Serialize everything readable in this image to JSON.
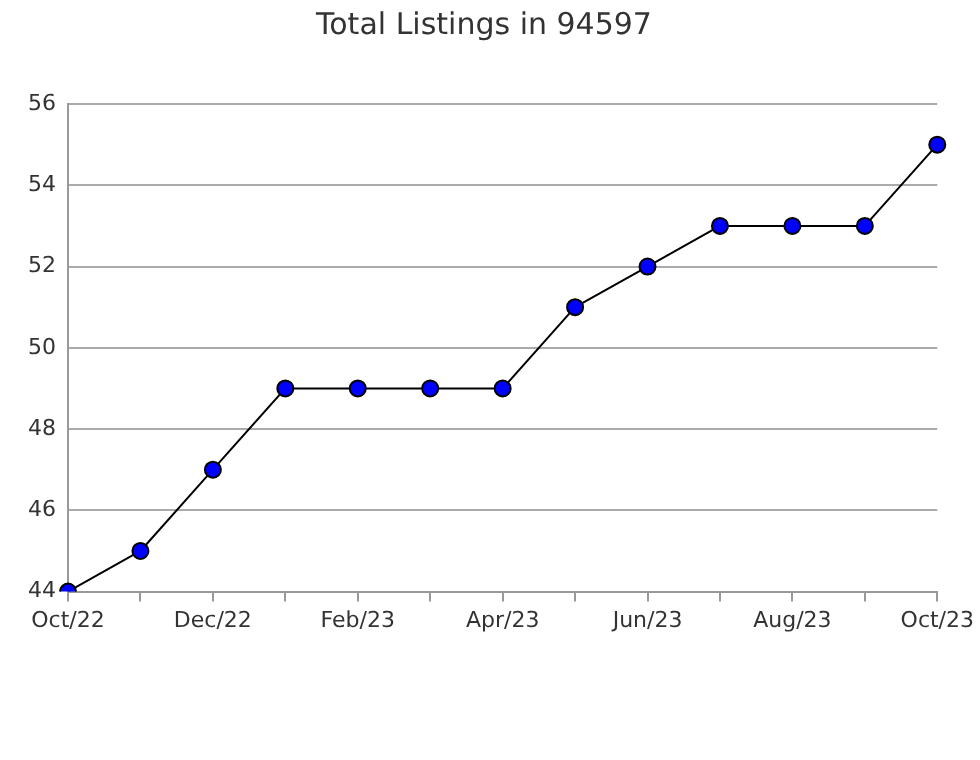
{
  "chart_data": {
    "type": "line",
    "title": "Total Listings in 94597",
    "categories": [
      "Oct/22",
      null,
      "Dec/22",
      null,
      "Feb/23",
      null,
      "Apr/23",
      null,
      "Jun/23",
      null,
      "Aug/23",
      null,
      "Oct/23"
    ],
    "series": [
      {
        "color": "#0000ff",
        "values": [
          44,
          45,
          47,
          49,
          49,
          49,
          49,
          51,
          52,
          53,
          53,
          53,
          55
        ]
      }
    ],
    "ylim": [
      44,
      56
    ],
    "yticks": [
      44,
      46,
      48,
      50,
      52,
      54,
      56
    ],
    "grid": "y",
    "legend": false,
    "marker": "circle",
    "line_style": "solid"
  }
}
